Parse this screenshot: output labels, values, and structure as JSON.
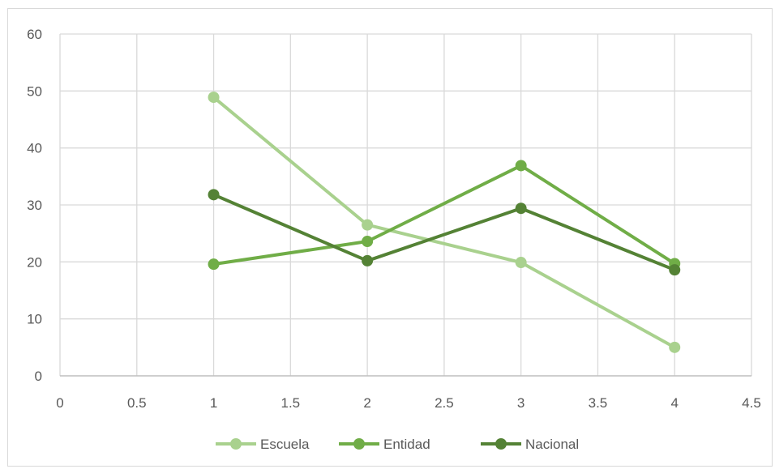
{
  "chart_data": {
    "type": "scatter",
    "mode": "lines+markers",
    "xlim": [
      0,
      4.5
    ],
    "ylim": [
      0,
      60
    ],
    "x_ticks": [
      "0",
      "0.5",
      "1",
      "1.5",
      "2",
      "2.5",
      "3",
      "3.5",
      "4",
      "4.5"
    ],
    "y_ticks": [
      "0",
      "10",
      "20",
      "30",
      "40",
      "50",
      "60"
    ],
    "grid": true,
    "legend_position": "bottom",
    "series": [
      {
        "name": "Escuela",
        "color": "#a9d18e",
        "x": [
          1,
          2,
          3,
          4
        ],
        "y": [
          48.9,
          26.5,
          19.9,
          5.0
        ]
      },
      {
        "name": "Entidad",
        "color": "#70ad47",
        "x": [
          1,
          2,
          3,
          4
        ],
        "y": [
          19.6,
          23.6,
          36.9,
          19.7
        ]
      },
      {
        "name": "Nacional",
        "color": "#548235",
        "x": [
          1,
          2,
          3,
          4
        ],
        "y": [
          31.8,
          20.2,
          29.4,
          18.6
        ]
      }
    ]
  }
}
